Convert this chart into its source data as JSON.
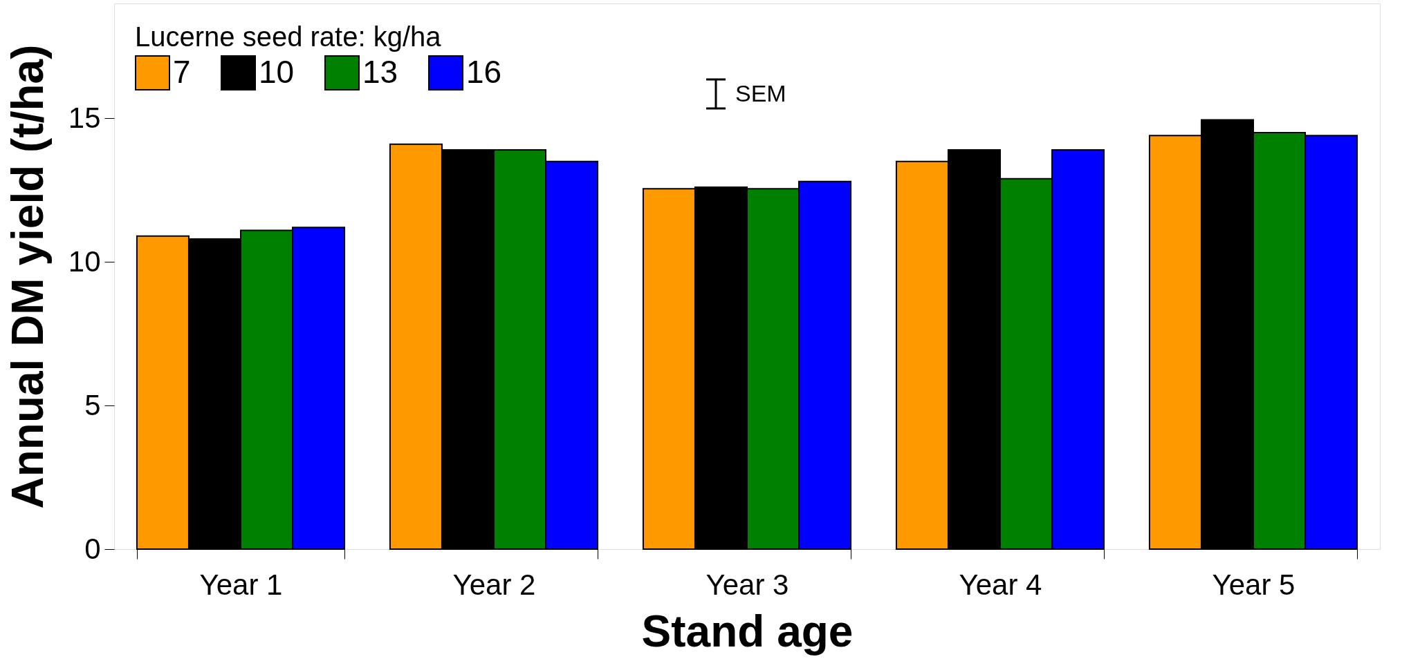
{
  "chart_data": {
    "type": "bar",
    "xlabel": "Stand age",
    "ylabel": "Annual DM yield (t/ha)",
    "legend_title": "Lucerne seed rate: kg/ha",
    "categories": [
      "Year 1",
      "Year 2",
      "Year 3",
      "Year 4",
      "Year 5"
    ],
    "series": [
      {
        "name": "7",
        "color": "#ff9900",
        "values": [
          10.9,
          14.1,
          12.55,
          13.5,
          14.4
        ]
      },
      {
        "name": "10",
        "color": "#000000",
        "values": [
          10.8,
          13.9,
          12.6,
          13.9,
          14.95
        ]
      },
      {
        "name": "13",
        "color": "#008000",
        "values": [
          11.1,
          13.9,
          12.55,
          12.9,
          14.5
        ]
      },
      {
        "name": "16",
        "color": "#0000ff",
        "values": [
          11.2,
          13.5,
          12.8,
          13.9,
          14.4
        ]
      }
    ],
    "ylim": [
      0,
      19
    ],
    "yticks": [
      0,
      5,
      10,
      15
    ],
    "grid": false,
    "legend": "top left",
    "annotations": [
      "SEM"
    ]
  }
}
